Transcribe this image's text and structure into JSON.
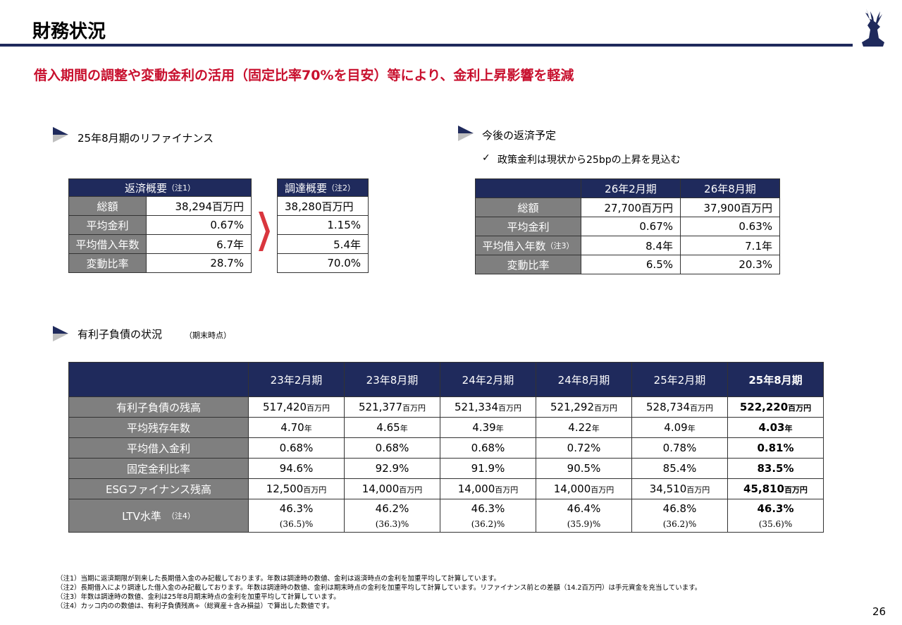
{
  "header": {
    "title": "財務状況",
    "subtitle": "借入期間の調整や変動金利の活用（固定比率70%を目安）等により、金利上昇影響を軽減"
  },
  "refinance": {
    "heading": "25年8月期のリファイナンス",
    "repay": {
      "header": "返済概要",
      "note": "（注1）",
      "rows": [
        [
          "総額",
          "38,294百万円"
        ],
        [
          "平均金利",
          "0.67%"
        ],
        [
          "平均借入年数",
          "6.7年"
        ],
        [
          "変動比率",
          "28.7%"
        ]
      ]
    },
    "procure": {
      "header": "調達概要",
      "note": "（注2）",
      "rows": [
        "38,280百万円",
        "1.15%",
        "5.4年",
        "70.0%"
      ]
    }
  },
  "schedule": {
    "heading": "今後の返済予定",
    "bullet": "政策金利は現状から25bpの上昇を見込む",
    "columns": [
      "26年2月期",
      "26年8月期"
    ],
    "rows": [
      {
        "label": "総額",
        "values": [
          "27,700百万円",
          "37,900百万円"
        ]
      },
      {
        "label": "平均金利",
        "values": [
          "0.67%",
          "0.63%"
        ]
      },
      {
        "label": "平均借入年数",
        "note": "（注3）",
        "values": [
          "8.4年",
          "7.1年"
        ]
      },
      {
        "label": "変動比率",
        "values": [
          "6.5%",
          "20.3%"
        ]
      }
    ]
  },
  "debt": {
    "heading": "有利子負債の状況",
    "heading_note": "（期末時点）",
    "columns": [
      "23年2月期",
      "23年8月期",
      "24年2月期",
      "24年8月期",
      "25年2月期",
      "25年8月期"
    ],
    "rows": [
      {
        "label": "有利子負債の残高",
        "unit": "百万円",
        "values": [
          "517,420",
          "521,377",
          "521,334",
          "521,292",
          "528,734",
          "522,220"
        ]
      },
      {
        "label": "平均残存年数",
        "unit": "年",
        "values": [
          "4.70",
          "4.65",
          "4.39",
          "4.22",
          "4.09",
          "4.03"
        ]
      },
      {
        "label": "平均借入金利",
        "unit": "%",
        "values": [
          "0.68",
          "0.68",
          "0.68",
          "0.72",
          "0.78",
          "0.81"
        ]
      },
      {
        "label": "固定金利比率",
        "unit": "%",
        "values": [
          "94.6",
          "92.9",
          "91.9",
          "90.5",
          "85.4",
          "83.5"
        ]
      },
      {
        "label": "ESGファイナンス残高",
        "unit": "百万円",
        "values": [
          "12,500",
          "14,000",
          "14,000",
          "14,000",
          "34,510",
          "45,810"
        ]
      },
      {
        "label": "LTV水準",
        "note": "（注4）",
        "unit": "%",
        "values": [
          "46.3",
          "46.2",
          "46.3",
          "46.4",
          "46.8",
          "46.3"
        ],
        "sub_values": [
          "(36.5)",
          "(36.3)",
          "(36.2)",
          "(35.9)",
          "(36.2)",
          "(35.6)"
        ]
      }
    ]
  },
  "footnotes": [
    "（注1）当期に返済期限が到来した長期借入金のみ記載しております。年数は調達時の数値、金利は返済時点の金利を加重平均して計算しています。",
    "（注2）長期借入により調達した借入金のみ記載しております。年数は調達時の数値、金利は期末時点の金利を加重平均して計算しています。リファイナンス前との差額（14.2百万円）は手元資金を充当しています。",
    "（注3）年数は調達時の数値、金利は25年8月期末時点の金利を加重平均して計算しています。",
    "（注4）カッコ内のの数値は、有利子負債残高÷（総資産＋含み損益）で算出した数値です。"
  ],
  "page_number": "26"
}
